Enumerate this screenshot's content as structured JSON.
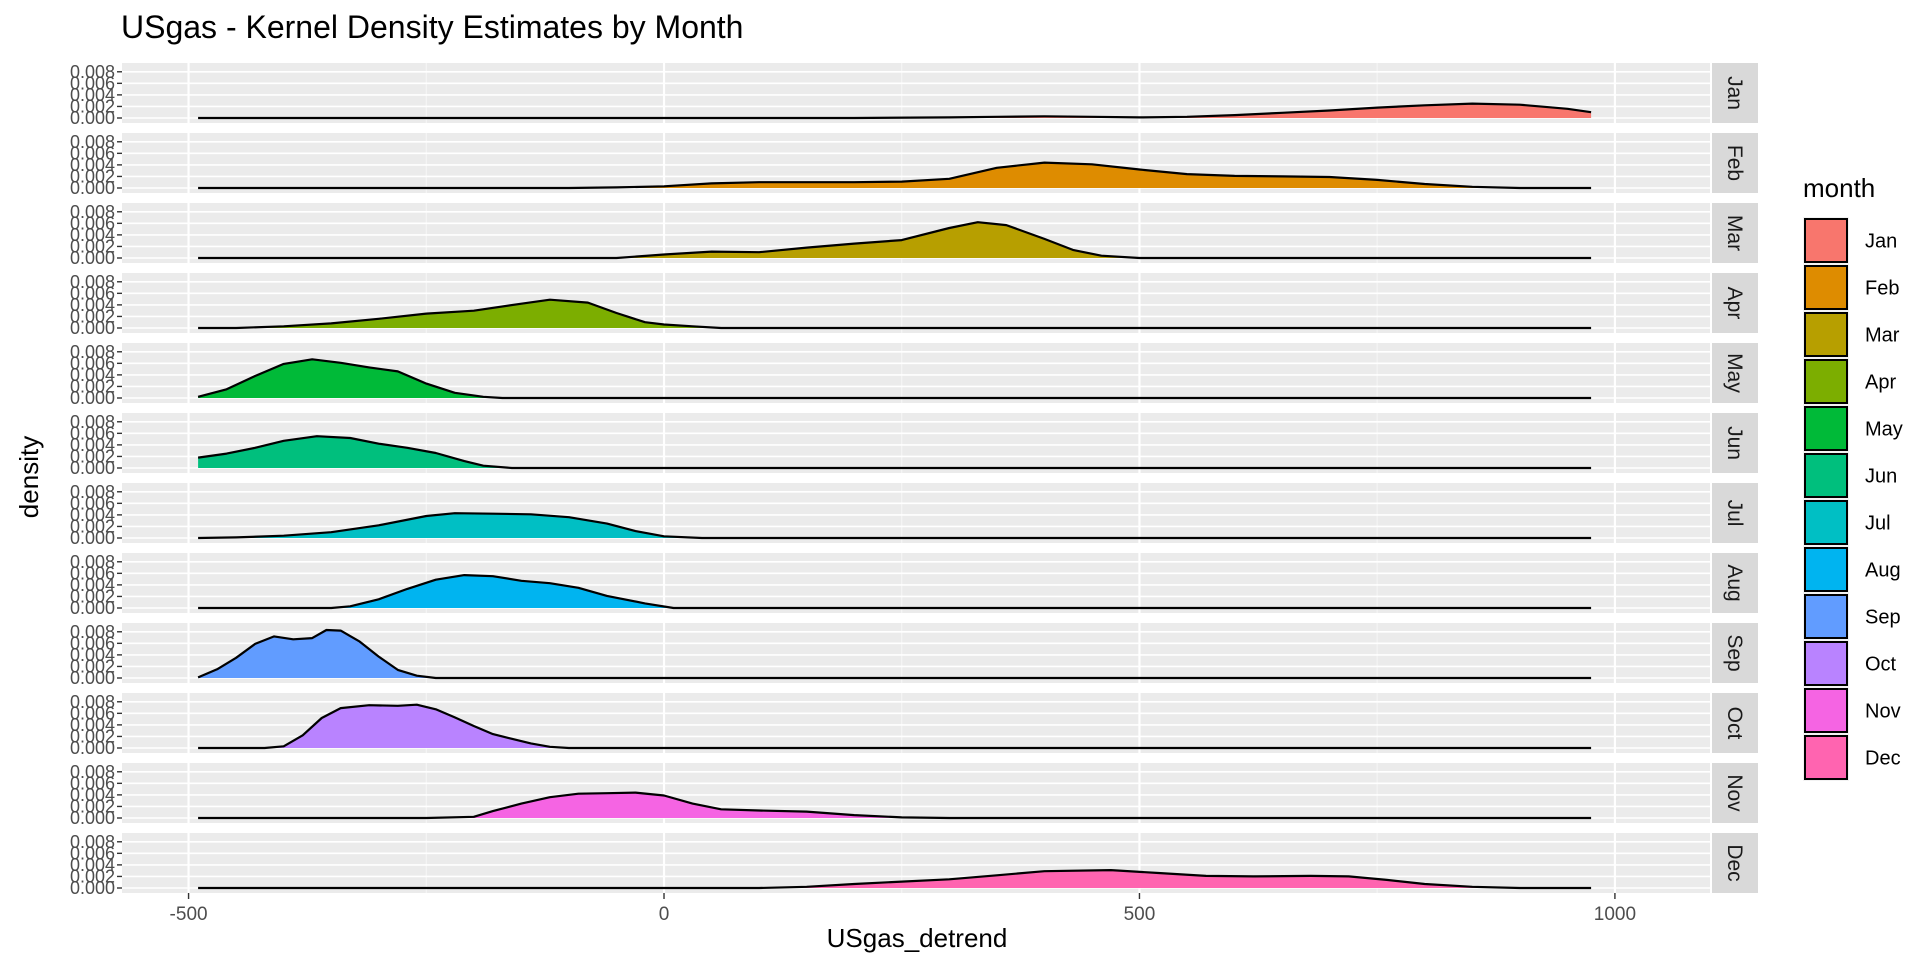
{
  "chart_data": {
    "type": "area",
    "subtype": "faceted-density",
    "title": "USgas - Kernel Density Estimates by Month",
    "xlabel": "USgas_detrend",
    "ylabel": "density",
    "xlim": [
      -570,
      1100
    ],
    "ylim": [
      0,
      0.009
    ],
    "x_ticks": [
      -500,
      0,
      500,
      1000
    ],
    "x_tick_labels": [
      "-500",
      "0",
      "500",
      "1000"
    ],
    "y_ticks": [
      0,
      0.002,
      0.004,
      0.006,
      0.008
    ],
    "y_tick_labels": [
      "0.000",
      "0.002",
      "0.004",
      "0.006",
      "0.008"
    ],
    "grid": true,
    "facet_strip_position": "right",
    "legend": {
      "title": "month",
      "position": "right"
    },
    "line_range": [
      -490,
      975
    ],
    "series": [
      {
        "name": "Jan",
        "color": "#F8766D",
        "domain": [
          -490,
          975
        ],
        "points": [
          [
            -490,
            0
          ],
          [
            200,
            0
          ],
          [
            300,
            0.0001
          ],
          [
            350,
            0.0002
          ],
          [
            400,
            0.0003
          ],
          [
            450,
            0.0002
          ],
          [
            500,
            0.0001
          ],
          [
            550,
            0.0002
          ],
          [
            600,
            0.0005
          ],
          [
            650,
            0.0009
          ],
          [
            700,
            0.0013
          ],
          [
            750,
            0.0018
          ],
          [
            800,
            0.0022
          ],
          [
            850,
            0.0025
          ],
          [
            900,
            0.0023
          ],
          [
            950,
            0.0016
          ],
          [
            975,
            0.001
          ]
        ]
      },
      {
        "name": "Feb",
        "color": "#DE8C00",
        "domain": [
          -490,
          975
        ],
        "points": [
          [
            -490,
            0
          ],
          [
            -100,
            0
          ],
          [
            -50,
            0.0001
          ],
          [
            0,
            0.0003
          ],
          [
            50,
            0.0008
          ],
          [
            100,
            0.001
          ],
          [
            150,
            0.001
          ],
          [
            200,
            0.001
          ],
          [
            250,
            0.0011
          ],
          [
            300,
            0.0016
          ],
          [
            350,
            0.0035
          ],
          [
            400,
            0.0044
          ],
          [
            450,
            0.0041
          ],
          [
            500,
            0.0032
          ],
          [
            550,
            0.0024
          ],
          [
            600,
            0.0021
          ],
          [
            650,
            0.002
          ],
          [
            700,
            0.0019
          ],
          [
            750,
            0.0014
          ],
          [
            800,
            0.0007
          ],
          [
            850,
            0.0002
          ],
          [
            900,
            0
          ],
          [
            975,
            0
          ]
        ]
      },
      {
        "name": "Mar",
        "color": "#B79F00",
        "domain": [
          -490,
          975
        ],
        "points": [
          [
            -490,
            0
          ],
          [
            -50,
            0
          ],
          [
            0,
            0.0006
          ],
          [
            50,
            0.0011
          ],
          [
            100,
            0.001
          ],
          [
            150,
            0.0018
          ],
          [
            200,
            0.0025
          ],
          [
            250,
            0.0031
          ],
          [
            300,
            0.0052
          ],
          [
            330,
            0.0062
          ],
          [
            360,
            0.0057
          ],
          [
            400,
            0.0033
          ],
          [
            430,
            0.0014
          ],
          [
            460,
            0.0004
          ],
          [
            500,
            0
          ],
          [
            975,
            0
          ]
        ]
      },
      {
        "name": "Apr",
        "color": "#7CAE00",
        "domain": [
          -490,
          975
        ],
        "points": [
          [
            -490,
            0
          ],
          [
            -450,
            0
          ],
          [
            -400,
            0.0003
          ],
          [
            -350,
            0.0008
          ],
          [
            -300,
            0.0016
          ],
          [
            -250,
            0.0025
          ],
          [
            -200,
            0.003
          ],
          [
            -150,
            0.0042
          ],
          [
            -120,
            0.0049
          ],
          [
            -80,
            0.0044
          ],
          [
            -50,
            0.0026
          ],
          [
            -20,
            0.001
          ],
          [
            0,
            0.0006
          ],
          [
            30,
            0.0003
          ],
          [
            60,
            0
          ],
          [
            975,
            0
          ]
        ]
      },
      {
        "name": "May",
        "color": "#00BA38",
        "domain": [
          -490,
          975
        ],
        "points": [
          [
            -490,
            0.0002
          ],
          [
            -460,
            0.0015
          ],
          [
            -430,
            0.0038
          ],
          [
            -400,
            0.0059
          ],
          [
            -370,
            0.0067
          ],
          [
            -340,
            0.0061
          ],
          [
            -310,
            0.0053
          ],
          [
            -280,
            0.0046
          ],
          [
            -250,
            0.0025
          ],
          [
            -220,
            0.0009
          ],
          [
            -190,
            0.0002
          ],
          [
            -170,
            0
          ],
          [
            975,
            0
          ]
        ]
      },
      {
        "name": "Jun",
        "color": "#00BF7D",
        "domain": [
          -490,
          975
        ],
        "points": [
          [
            -490,
            0.0018
          ],
          [
            -460,
            0.0025
          ],
          [
            -430,
            0.0035
          ],
          [
            -400,
            0.0047
          ],
          [
            -365,
            0.0055
          ],
          [
            -330,
            0.0052
          ],
          [
            -300,
            0.0042
          ],
          [
            -270,
            0.0035
          ],
          [
            -240,
            0.0026
          ],
          [
            -210,
            0.0012
          ],
          [
            -190,
            0.0004
          ],
          [
            -160,
            0
          ],
          [
            975,
            0
          ]
        ]
      },
      {
        "name": "Jul",
        "color": "#00BFC4",
        "domain": [
          -490,
          975
        ],
        "points": [
          [
            -490,
            0
          ],
          [
            -450,
            0.0001
          ],
          [
            -400,
            0.0004
          ],
          [
            -350,
            0.001
          ],
          [
            -300,
            0.0022
          ],
          [
            -250,
            0.0038
          ],
          [
            -220,
            0.0043
          ],
          [
            -180,
            0.0042
          ],
          [
            -140,
            0.0041
          ],
          [
            -100,
            0.0036
          ],
          [
            -60,
            0.0025
          ],
          [
            -30,
            0.0012
          ],
          [
            0,
            0.0003
          ],
          [
            40,
            0
          ],
          [
            975,
            0
          ]
        ]
      },
      {
        "name": "Aug",
        "color": "#00B4F0",
        "domain": [
          -490,
          975
        ],
        "points": [
          [
            -490,
            0
          ],
          [
            -350,
            0
          ],
          [
            -330,
            0.0003
          ],
          [
            -300,
            0.0015
          ],
          [
            -270,
            0.0033
          ],
          [
            -240,
            0.0049
          ],
          [
            -210,
            0.0057
          ],
          [
            -180,
            0.0055
          ],
          [
            -150,
            0.0047
          ],
          [
            -120,
            0.0043
          ],
          [
            -90,
            0.0035
          ],
          [
            -60,
            0.0021
          ],
          [
            -20,
            0.0008
          ],
          [
            10,
            0
          ],
          [
            975,
            0
          ]
        ]
      },
      {
        "name": "Sep",
        "color": "#619CFF",
        "domain": [
          -490,
          975
        ],
        "points": [
          [
            -490,
            0.0001
          ],
          [
            -470,
            0.0015
          ],
          [
            -450,
            0.0035
          ],
          [
            -430,
            0.0059
          ],
          [
            -410,
            0.0072
          ],
          [
            -390,
            0.0067
          ],
          [
            -370,
            0.0069
          ],
          [
            -355,
            0.0083
          ],
          [
            -340,
            0.0082
          ],
          [
            -320,
            0.0063
          ],
          [
            -300,
            0.0037
          ],
          [
            -280,
            0.0014
          ],
          [
            -260,
            0.0004
          ],
          [
            -240,
            0
          ],
          [
            975,
            0
          ]
        ]
      },
      {
        "name": "Oct",
        "color": "#B983FF",
        "domain": [
          -490,
          975
        ],
        "points": [
          [
            -490,
            0
          ],
          [
            -420,
            0
          ],
          [
            -400,
            0.0003
          ],
          [
            -380,
            0.0022
          ],
          [
            -360,
            0.0052
          ],
          [
            -340,
            0.0069
          ],
          [
            -310,
            0.0074
          ],
          [
            -280,
            0.0073
          ],
          [
            -260,
            0.0075
          ],
          [
            -240,
            0.0067
          ],
          [
            -220,
            0.0053
          ],
          [
            -200,
            0.0038
          ],
          [
            -180,
            0.0024
          ],
          [
            -160,
            0.0016
          ],
          [
            -140,
            0.0008
          ],
          [
            -120,
            0.0002
          ],
          [
            -100,
            0
          ],
          [
            975,
            0
          ]
        ]
      },
      {
        "name": "Nov",
        "color": "#F564E3",
        "domain": [
          -490,
          975
        ],
        "points": [
          [
            -490,
            0
          ],
          [
            -250,
            0
          ],
          [
            -200,
            0.0002
          ],
          [
            -180,
            0.0012
          ],
          [
            -150,
            0.0025
          ],
          [
            -120,
            0.0036
          ],
          [
            -90,
            0.0042
          ],
          [
            -60,
            0.0043
          ],
          [
            -30,
            0.0044
          ],
          [
            0,
            0.0039
          ],
          [
            30,
            0.0025
          ],
          [
            60,
            0.0015
          ],
          [
            100,
            0.0013
          ],
          [
            150,
            0.0011
          ],
          [
            200,
            0.0005
          ],
          [
            250,
            0.0001
          ],
          [
            300,
            0
          ],
          [
            975,
            0
          ]
        ]
      },
      {
        "name": "Dec",
        "color": "#FF64B0",
        "domain": [
          -490,
          975
        ],
        "points": [
          [
            -490,
            0
          ],
          [
            100,
            0
          ],
          [
            150,
            0.0002
          ],
          [
            200,
            0.0007
          ],
          [
            250,
            0.0011
          ],
          [
            300,
            0.0015
          ],
          [
            350,
            0.0022
          ],
          [
            400,
            0.0029
          ],
          [
            470,
            0.0031
          ],
          [
            520,
            0.0026
          ],
          [
            570,
            0.0021
          ],
          [
            620,
            0.002
          ],
          [
            680,
            0.0021
          ],
          [
            720,
            0.002
          ],
          [
            760,
            0.0014
          ],
          [
            800,
            0.0007
          ],
          [
            850,
            0.0002
          ],
          [
            900,
            0
          ],
          [
            975,
            0
          ]
        ]
      }
    ]
  }
}
